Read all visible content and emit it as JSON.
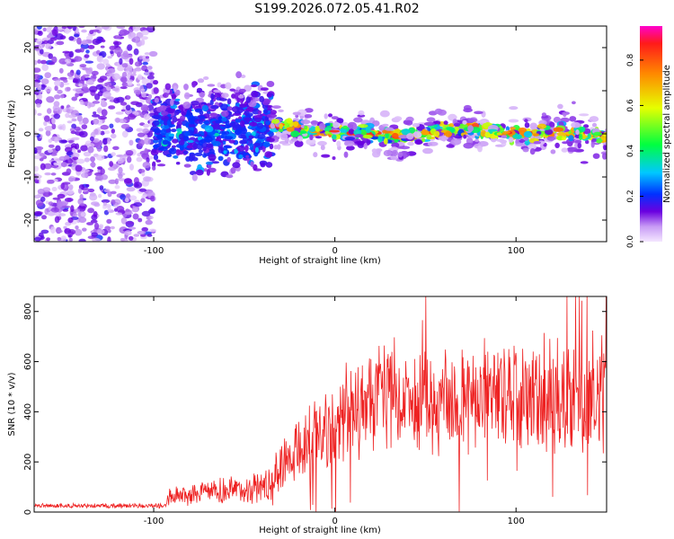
{
  "title": "S199.2026.072.05.41.R02",
  "colors": {
    "trace": "#ee2222",
    "axis": "#000000",
    "background": "#ffffff"
  },
  "chart_data": [
    {
      "type": "heatmap",
      "xlabel": "Height of straight line (km)",
      "ylabel": "Frequency (Hz)",
      "xlim": [
        -166,
        150
      ],
      "ylim": [
        -25,
        25
      ],
      "x_ticks": [
        -100,
        0,
        100
      ],
      "y_ticks": [
        -20,
        -10,
        0,
        10,
        20
      ],
      "regions": [
        {
          "x_range": [
            -166,
            -100
          ],
          "description_free": true,
          "mean_freq": 0,
          "spread_hz": 25,
          "amplitude": 0.2
        },
        {
          "x_range": [
            -100,
            -35
          ],
          "mean_freq": 0,
          "spread_hz": 7,
          "amplitude": 0.35
        },
        {
          "x_range": [
            -35,
            150
          ],
          "mean_freq": 0,
          "spread_hz": 2.5,
          "amplitude": 0.9
        }
      ],
      "ridge_frequency_hz": [
        {
          "x": -35,
          "y": 2
        },
        {
          "x": -20,
          "y": 1
        },
        {
          "x": 0,
          "y": 0.5
        },
        {
          "x": 40,
          "y": -0.5
        },
        {
          "x": 75,
          "y": 1.5
        },
        {
          "x": 100,
          "y": 0
        },
        {
          "x": 130,
          "y": 0.5
        },
        {
          "x": 150,
          "y": -0.5
        }
      ],
      "colorbar": {
        "label": "Normalized spectral amplitude",
        "range": [
          0,
          0.95
        ],
        "ticks": [
          0.0,
          0.2,
          0.4,
          0.6,
          0.8
        ],
        "tick_labels": [
          "0.0",
          "0.2",
          "0.4",
          "0.6",
          "0.8"
        ]
      }
    },
    {
      "type": "line",
      "xlabel": "Height of straight line (km)",
      "ylabel": "SNR (10 * v/v)",
      "xlim": [
        -166,
        150
      ],
      "ylim": [
        0,
        860
      ],
      "x_ticks": [
        -100,
        0,
        100
      ],
      "y_ticks": [
        0,
        200,
        400,
        600,
        800
      ],
      "series": [
        {
          "name": "SNR",
          "x_segments": [
            -166,
            -95,
            -90,
            -50,
            -35,
            -25,
            -10,
            0,
            20,
            150
          ],
          "mean": [
            25,
            25,
            65,
            90,
            110,
            250,
            300,
            350,
            450,
            450
          ],
          "spread": [
            8,
            10,
            40,
            55,
            80,
            130,
            150,
            170,
            210,
            220
          ]
        }
      ]
    }
  ]
}
